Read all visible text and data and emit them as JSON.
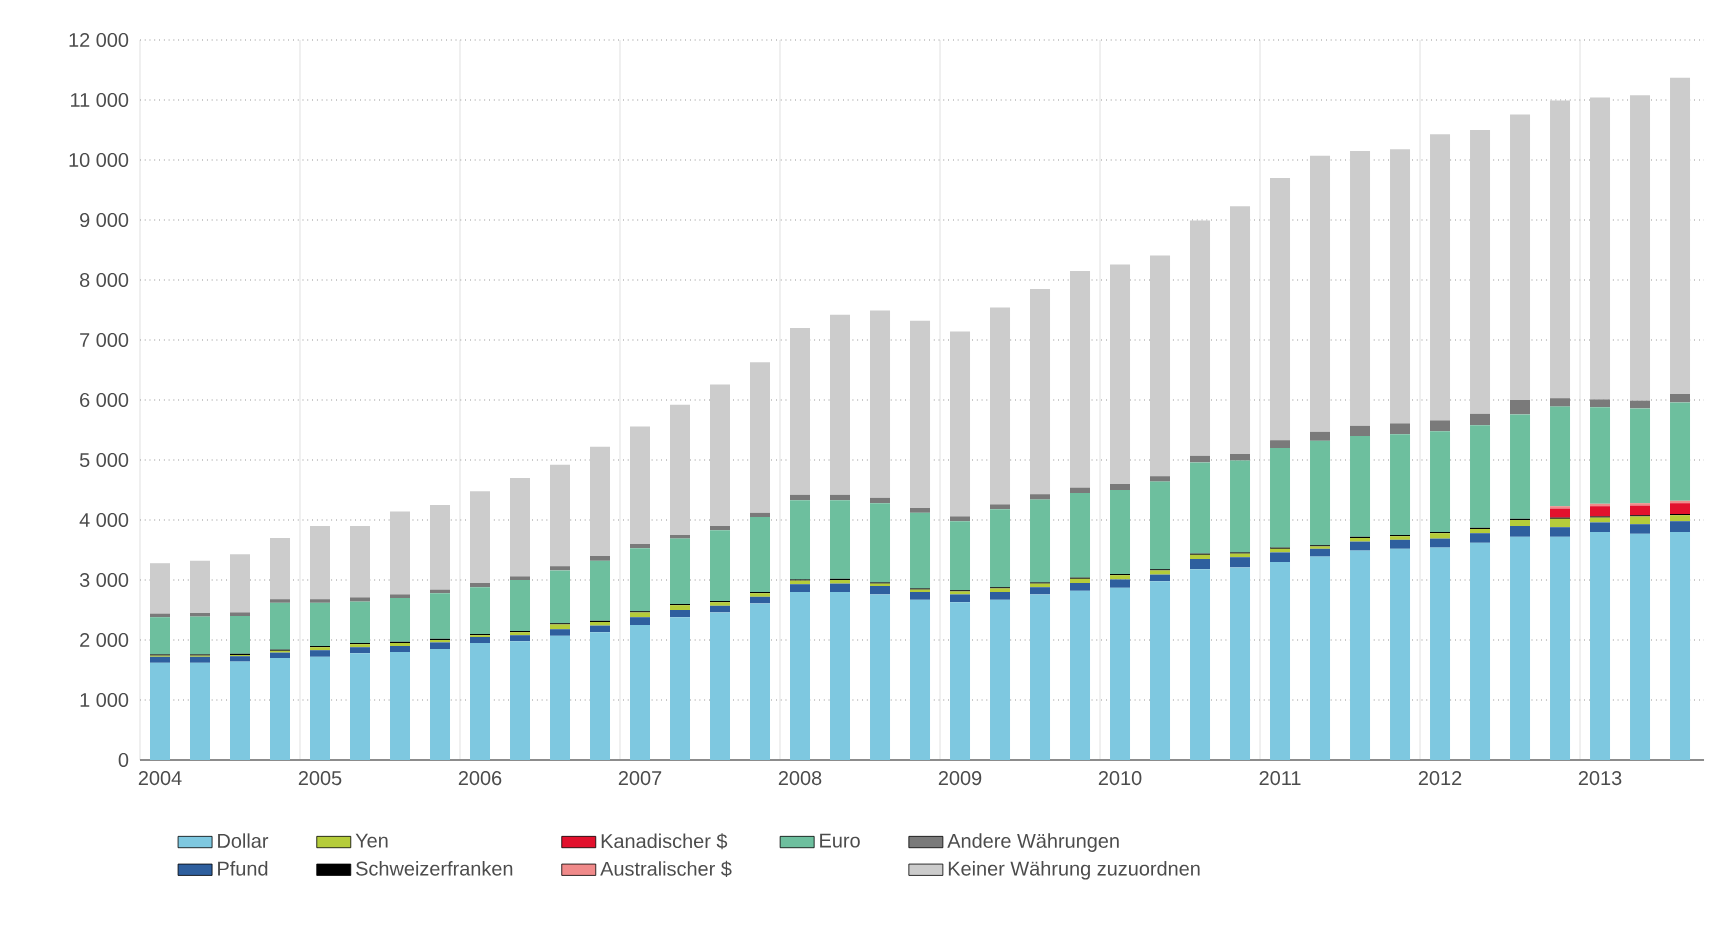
{
  "chart_data": {
    "type": "bar",
    "stacked": true,
    "categories": [
      "2004",
      null,
      null,
      null,
      "2005",
      null,
      null,
      null,
      "2006",
      null,
      null,
      null,
      "2007",
      null,
      null,
      null,
      "2008",
      null,
      null,
      null,
      "2009",
      null,
      null,
      null,
      "2010",
      null,
      null,
      null,
      "2011",
      null,
      null,
      null,
      "2012",
      null,
      null,
      null,
      "2013",
      null,
      null
    ],
    "series": [
      {
        "name": "Dollar",
        "color": "#7ec8e0",
        "values": [
          1620,
          1620,
          1640,
          1700,
          1720,
          1780,
          1800,
          1850,
          1950,
          1980,
          2070,
          2130,
          2250,
          2380,
          2460,
          2610,
          2800,
          2800,
          2760,
          2670,
          2630,
          2670,
          2760,
          2820,
          2870,
          2980,
          3180,
          3210,
          3300,
          3390,
          3490,
          3520,
          3540,
          3620,
          3720,
          3720,
          3800,
          3770,
          3800
        ]
      },
      {
        "name": "Pfund",
        "color": "#2e5f9e",
        "values": [
          100,
          100,
          90,
          90,
          110,
          100,
          100,
          110,
          100,
          100,
          110,
          110,
          130,
          120,
          110,
          110,
          130,
          140,
          140,
          130,
          130,
          130,
          120,
          130,
          140,
          110,
          170,
          170,
          160,
          130,
          150,
          150,
          150,
          160,
          180,
          160,
          160,
          160,
          180
        ]
      },
      {
        "name": "Yen",
        "color": "#b5cc3a",
        "values": [
          20,
          20,
          20,
          30,
          50,
          50,
          50,
          40,
          30,
          50,
          80,
          60,
          80,
          80,
          60,
          60,
          60,
          60,
          40,
          40,
          50,
          60,
          60,
          70,
          70,
          70,
          70,
          60,
          60,
          40,
          60,
          60,
          90,
          70,
          100,
          140,
          80,
          130,
          100
        ]
      },
      {
        "name": "Schweizerfranken",
        "color": "#000000",
        "values": [
          20,
          20,
          20,
          20,
          20,
          20,
          20,
          20,
          20,
          20,
          20,
          20,
          20,
          20,
          20,
          20,
          20,
          20,
          20,
          20,
          20,
          20,
          20,
          20,
          20,
          20,
          20,
          20,
          20,
          20,
          20,
          20,
          20,
          20,
          20,
          20,
          20,
          20,
          20
        ]
      },
      {
        "name": "Kanadischer $",
        "color": "#e2112d",
        "values": [
          0,
          0,
          0,
          0,
          0,
          0,
          0,
          0,
          0,
          0,
          0,
          0,
          0,
          0,
          0,
          0,
          0,
          0,
          0,
          0,
          0,
          0,
          0,
          0,
          0,
          0,
          0,
          0,
          0,
          0,
          0,
          0,
          0,
          0,
          0,
          150,
          170,
          160,
          180
        ]
      },
      {
        "name": "Australischer $",
        "color": "#f08a8a",
        "values": [
          0,
          0,
          0,
          0,
          0,
          0,
          0,
          0,
          0,
          0,
          0,
          0,
          0,
          0,
          0,
          0,
          0,
          0,
          0,
          0,
          0,
          0,
          0,
          0,
          0,
          0,
          0,
          0,
          0,
          0,
          0,
          0,
          0,
          0,
          0,
          40,
          40,
          40,
          40
        ]
      },
      {
        "name": "Euro",
        "color": "#6dbf9e",
        "values": [
          620,
          630,
          630,
          780,
          720,
          690,
          730,
          760,
          780,
          850,
          880,
          1000,
          1050,
          1090,
          1180,
          1250,
          1320,
          1310,
          1320,
          1260,
          1150,
          1300,
          1380,
          1410,
          1400,
          1460,
          1520,
          1530,
          1660,
          1740,
          1680,
          1680,
          1680,
          1710,
          1740,
          1660,
          1610,
          1580,
          1640
        ]
      },
      {
        "name": "Andere Währungen",
        "color": "#7a7a7a",
        "values": [
          60,
          60,
          60,
          60,
          60,
          70,
          60,
          60,
          70,
          60,
          70,
          80,
          70,
          60,
          70,
          70,
          90,
          90,
          90,
          80,
          80,
          80,
          90,
          90,
          100,
          90,
          110,
          110,
          130,
          150,
          170,
          180,
          180,
          190,
          240,
          140,
          130,
          130,
          140
        ]
      },
      {
        "name": "Keiner Währung zuzuordnen",
        "color": "#cccccc",
        "values": [
          840,
          870,
          970,
          1020,
          1220,
          1190,
          1380,
          1410,
          1530,
          1640,
          1690,
          1820,
          1960,
          2170,
          2360,
          2510,
          2780,
          3000,
          3120,
          3120,
          3080,
          3280,
          3420,
          3610,
          3660,
          3680,
          3920,
          4130,
          4370,
          4600,
          4580,
          4570,
          4770,
          4730,
          4760,
          4960,
          5030,
          5090,
          5270
        ]
      }
    ],
    "ylim": [
      0,
      12000
    ],
    "yticks": [
      {
        "value": 0,
        "label": "0"
      },
      {
        "value": 1000,
        "label": "1 000"
      },
      {
        "value": 2000,
        "label": "2 000"
      },
      {
        "value": 3000,
        "label": "3 000"
      },
      {
        "value": 4000,
        "label": "4 000"
      },
      {
        "value": 5000,
        "label": "5 000"
      },
      {
        "value": 6000,
        "label": "6 000"
      },
      {
        "value": 7000,
        "label": "7 000"
      },
      {
        "value": 8000,
        "label": "8 000"
      },
      {
        "value": 9000,
        "label": "9 000"
      },
      {
        "value": 10000,
        "label": "10 000"
      },
      {
        "value": 11000,
        "label": "11 000"
      },
      {
        "value": 12000,
        "label": "12 000"
      }
    ],
    "grid": true,
    "legend": "bottom"
  }
}
